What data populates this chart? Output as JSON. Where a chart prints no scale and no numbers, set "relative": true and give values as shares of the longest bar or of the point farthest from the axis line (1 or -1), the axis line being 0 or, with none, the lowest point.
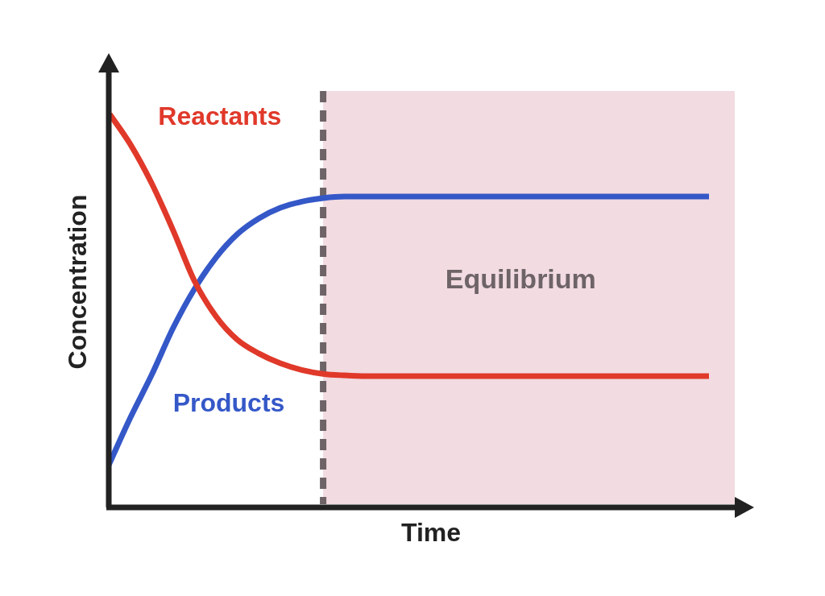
{
  "chart_data": {
    "type": "line",
    "relative": true,
    "xlabel": "Time",
    "ylabel": "Concentration",
    "marker": "none",
    "annotations": [
      "Equilibrium"
    ],
    "categories": [
      null,
      null,
      null,
      null,
      null,
      null,
      null,
      null,
      null,
      null,
      null,
      null,
      null,
      null,
      null,
      null,
      null,
      null,
      null,
      null,
      null,
      null,
      null,
      null,
      null,
      null,
      null,
      null,
      null
    ],
    "series": [
      {
        "name": "Reactants",
        "color": "#e0392a",
        "values": [
          1,
          0.92,
          0.82,
          0.7,
          0.57,
          0.48,
          0.42,
          0.385,
          0.36,
          0.343,
          0.333,
          0.329,
          0.327,
          0.327,
          0.327,
          0.327,
          0.327,
          0.327,
          0.327,
          0.327,
          0.327,
          0.327,
          0.327,
          0.327,
          0.327,
          0.327,
          0.327,
          0.327,
          0.327
        ]
      },
      {
        "name": "Products",
        "color": "#3558c8",
        "values": [
          0.1,
          0.22,
          0.33,
          0.45,
          0.55,
          0.63,
          0.69,
          0.73,
          0.757,
          0.773,
          0.782,
          0.786,
          0.786,
          0.786,
          0.786,
          0.786,
          0.786,
          0.786,
          0.786,
          0.786,
          0.786,
          0.786,
          0.786,
          0.786,
          0.786,
          0.786,
          0.786,
          0.786,
          0.786
        ]
      }
    ]
  }
}
